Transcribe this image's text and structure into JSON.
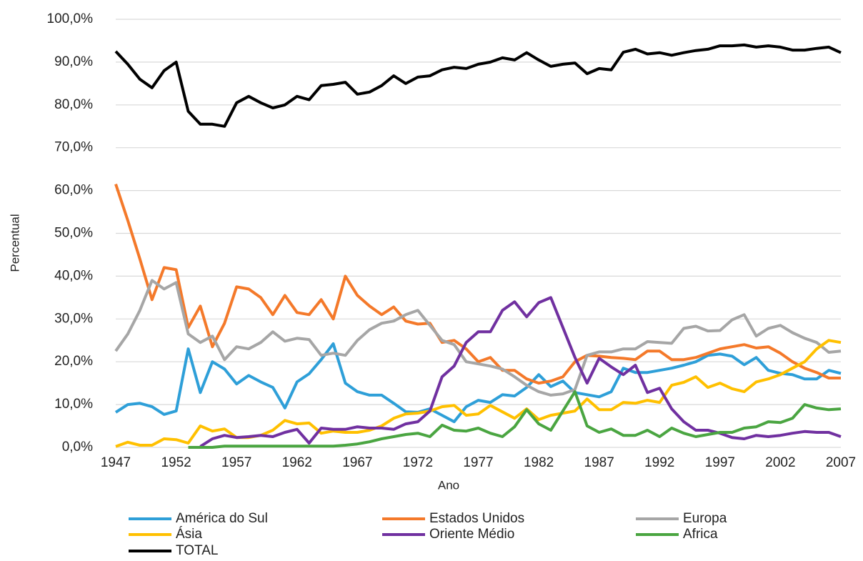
{
  "chart_data": {
    "type": "line",
    "y_label": "Percentual",
    "x_label": "Ano",
    "x": [
      1947,
      1948,
      1949,
      1950,
      1951,
      1952,
      1953,
      1954,
      1955,
      1956,
      1957,
      1958,
      1959,
      1960,
      1961,
      1962,
      1963,
      1964,
      1965,
      1966,
      1967,
      1968,
      1969,
      1970,
      1971,
      1972,
      1973,
      1974,
      1975,
      1976,
      1977,
      1978,
      1979,
      1980,
      1981,
      1982,
      1983,
      1984,
      1985,
      1986,
      1987,
      1988,
      1989,
      1990,
      1991,
      1992,
      1993,
      1994,
      1995,
      1996,
      1997,
      1998,
      1999,
      2000,
      2001,
      2002,
      2003,
      2004,
      2005,
      2006,
      2007
    ],
    "xlim": [
      1947,
      2007
    ],
    "xticks": [
      1947,
      1952,
      1957,
      1962,
      1967,
      1972,
      1977,
      1982,
      1987,
      1992,
      1997,
      2002,
      2007
    ],
    "ylim": [
      0,
      100
    ],
    "yticks": [
      {
        "value": 0,
        "label": "0,0%"
      },
      {
        "value": 10,
        "label": "10,0%"
      },
      {
        "value": 20,
        "label": "20,0%"
      },
      {
        "value": 30,
        "label": "30,0%"
      },
      {
        "value": 40,
        "label": "40,0%"
      },
      {
        "value": 50,
        "label": "50,0%"
      },
      {
        "value": 60,
        "label": "60,0%"
      },
      {
        "value": 70,
        "label": "70,0%"
      },
      {
        "value": 80,
        "label": "80,0%"
      },
      {
        "value": 90,
        "label": "90,0%"
      },
      {
        "value": 100,
        "label": "100,0%"
      }
    ],
    "grid": true,
    "series": [
      {
        "name": "América do Sul",
        "color": "#2e9fd8",
        "values": [
          8.2,
          10,
          10.3,
          9.5,
          7.7,
          8.5,
          23,
          12.8,
          20,
          18.3,
          14.8,
          16.8,
          15.3,
          14,
          9.2,
          15.3,
          17.2,
          20.5,
          24.2,
          15,
          13,
          12.2,
          12.2,
          10.3,
          8.3,
          8.2,
          9,
          7.5,
          6,
          9.5,
          11,
          10.5,
          12.3,
          12,
          14,
          17,
          14.2,
          15.5,
          12.8,
          12.3,
          11.8,
          13,
          18.5,
          17.5,
          17.5,
          18,
          18.5,
          19.2,
          20,
          21.5,
          21.8,
          21.3,
          19.3,
          21,
          18,
          17.3,
          17,
          16,
          16,
          18,
          17.3
        ]
      },
      {
        "name": "Estados Unidos",
        "color": "#f4792a",
        "values": [
          61.5,
          53,
          44,
          34.5,
          42,
          41.5,
          28,
          33,
          23.5,
          29,
          37.5,
          37,
          35,
          31,
          35.5,
          31.5,
          31,
          34.5,
          30,
          40,
          35.5,
          33,
          31,
          32.8,
          29.5,
          28.8,
          29,
          24.5,
          25,
          23,
          20,
          21,
          18,
          18,
          16,
          15,
          15.5,
          16.5,
          20,
          21.5,
          21.3,
          21,
          20.8,
          20.5,
          22.5,
          22.5,
          20.5,
          20.5,
          21,
          22,
          23,
          23.5,
          24,
          23.2,
          23.5,
          22,
          20,
          18.5,
          17.5,
          16.2,
          16.2
        ]
      },
      {
        "name": "Europa",
        "color": "#a6a6a6",
        "values": [
          22.5,
          26.5,
          32,
          39,
          37,
          38.5,
          26.5,
          24.5,
          26,
          20.5,
          23.5,
          23,
          24.5,
          27,
          24.8,
          25.5,
          25.2,
          21.5,
          22,
          21.5,
          25,
          27.5,
          29,
          29.5,
          31,
          32,
          28.5,
          25,
          24,
          20,
          19.5,
          19,
          18.3,
          16.5,
          14.5,
          13,
          12.2,
          12.5,
          13.5,
          21.5,
          22.3,
          22.3,
          23,
          23,
          24.7,
          24.5,
          24.3,
          27.8,
          28.3,
          27.2,
          27.3,
          29.8,
          31,
          26,
          27.8,
          28.5,
          26.8,
          25.5,
          24.5,
          22.2,
          22.5
        ]
      },
      {
        "name": "Ásia",
        "color": "#ffc000",
        "values": [
          0.2,
          1.2,
          0.5,
          0.5,
          2,
          1.8,
          1,
          5,
          3.8,
          4.3,
          2.3,
          2.3,
          2.8,
          4,
          6.3,
          5.5,
          5.7,
          3.3,
          3.8,
          3.5,
          3.5,
          4,
          5,
          6.8,
          7.8,
          8,
          8.5,
          9.5,
          9.8,
          7.5,
          7.8,
          9.8,
          8.3,
          6.8,
          9,
          6.5,
          7.5,
          8,
          8.5,
          11.3,
          8.8,
          8.8,
          10.5,
          10.3,
          11,
          10.5,
          14.5,
          15.2,
          16.5,
          14,
          15,
          13.7,
          13,
          15.3,
          16,
          17,
          18.5,
          20,
          23,
          25,
          24.5
        ]
      },
      {
        "name": "Oriente Médio",
        "color": "#7030a0",
        "values": [
          null,
          null,
          null,
          null,
          null,
          null,
          null,
          0.2,
          2,
          2.8,
          2.3,
          2.5,
          2.8,
          2.5,
          3.5,
          4.2,
          1,
          4.5,
          4.2,
          4.2,
          4.8,
          4.5,
          4.5,
          4.2,
          5.5,
          6,
          8.5,
          16.5,
          19,
          24.5,
          27,
          27,
          32,
          34,
          30.5,
          33.8,
          35,
          28,
          21,
          15,
          20.8,
          18.8,
          17,
          19.2,
          12.8,
          13.8,
          9,
          6,
          4,
          4,
          3.3,
          2.3,
          2,
          2.8,
          2.5,
          2.8,
          3.3,
          3.7,
          3.5,
          3.5,
          2.5
        ]
      },
      {
        "name": "Africa",
        "color": "#4aa541",
        "values": [
          null,
          null,
          null,
          null,
          null,
          null,
          0,
          0,
          0,
          0.3,
          0.3,
          0.3,
          0.3,
          0.3,
          0.3,
          0.3,
          0.3,
          0.3,
          0.3,
          0.5,
          0.8,
          1.3,
          2,
          2.5,
          3,
          3.3,
          2.5,
          5.2,
          4,
          3.8,
          4.5,
          3.3,
          2.5,
          4.8,
          8.8,
          5.5,
          4,
          8.5,
          13,
          5,
          3.5,
          4.3,
          2.8,
          2.8,
          4,
          2.5,
          4.5,
          3.3,
          2.5,
          3,
          3.5,
          3.5,
          4.5,
          4.8,
          6,
          5.8,
          6.8,
          10,
          9.2,
          8.8,
          9
        ]
      },
      {
        "name": "TOTAL",
        "color": "#000000",
        "values": [
          92.5,
          89.5,
          86,
          84,
          88,
          90,
          78.5,
          75.5,
          75.5,
          75,
          80.5,
          82,
          80.5,
          79.3,
          80,
          82,
          81.2,
          84.5,
          84.8,
          85.3,
          82.5,
          83,
          84.5,
          86.8,
          85,
          86.5,
          86.8,
          88.2,
          88.8,
          88.5,
          89.5,
          90,
          91,
          90.5,
          92.2,
          90.5,
          89,
          89.5,
          89.8,
          87.3,
          88.5,
          88.2,
          92.3,
          93,
          91.9,
          92.2,
          91.6,
          92.2,
          92.7,
          93,
          93.8,
          93.8,
          94,
          93.5,
          93.8,
          93.5,
          92.8,
          92.8,
          93.2,
          93.5,
          92.2
        ]
      }
    ]
  }
}
